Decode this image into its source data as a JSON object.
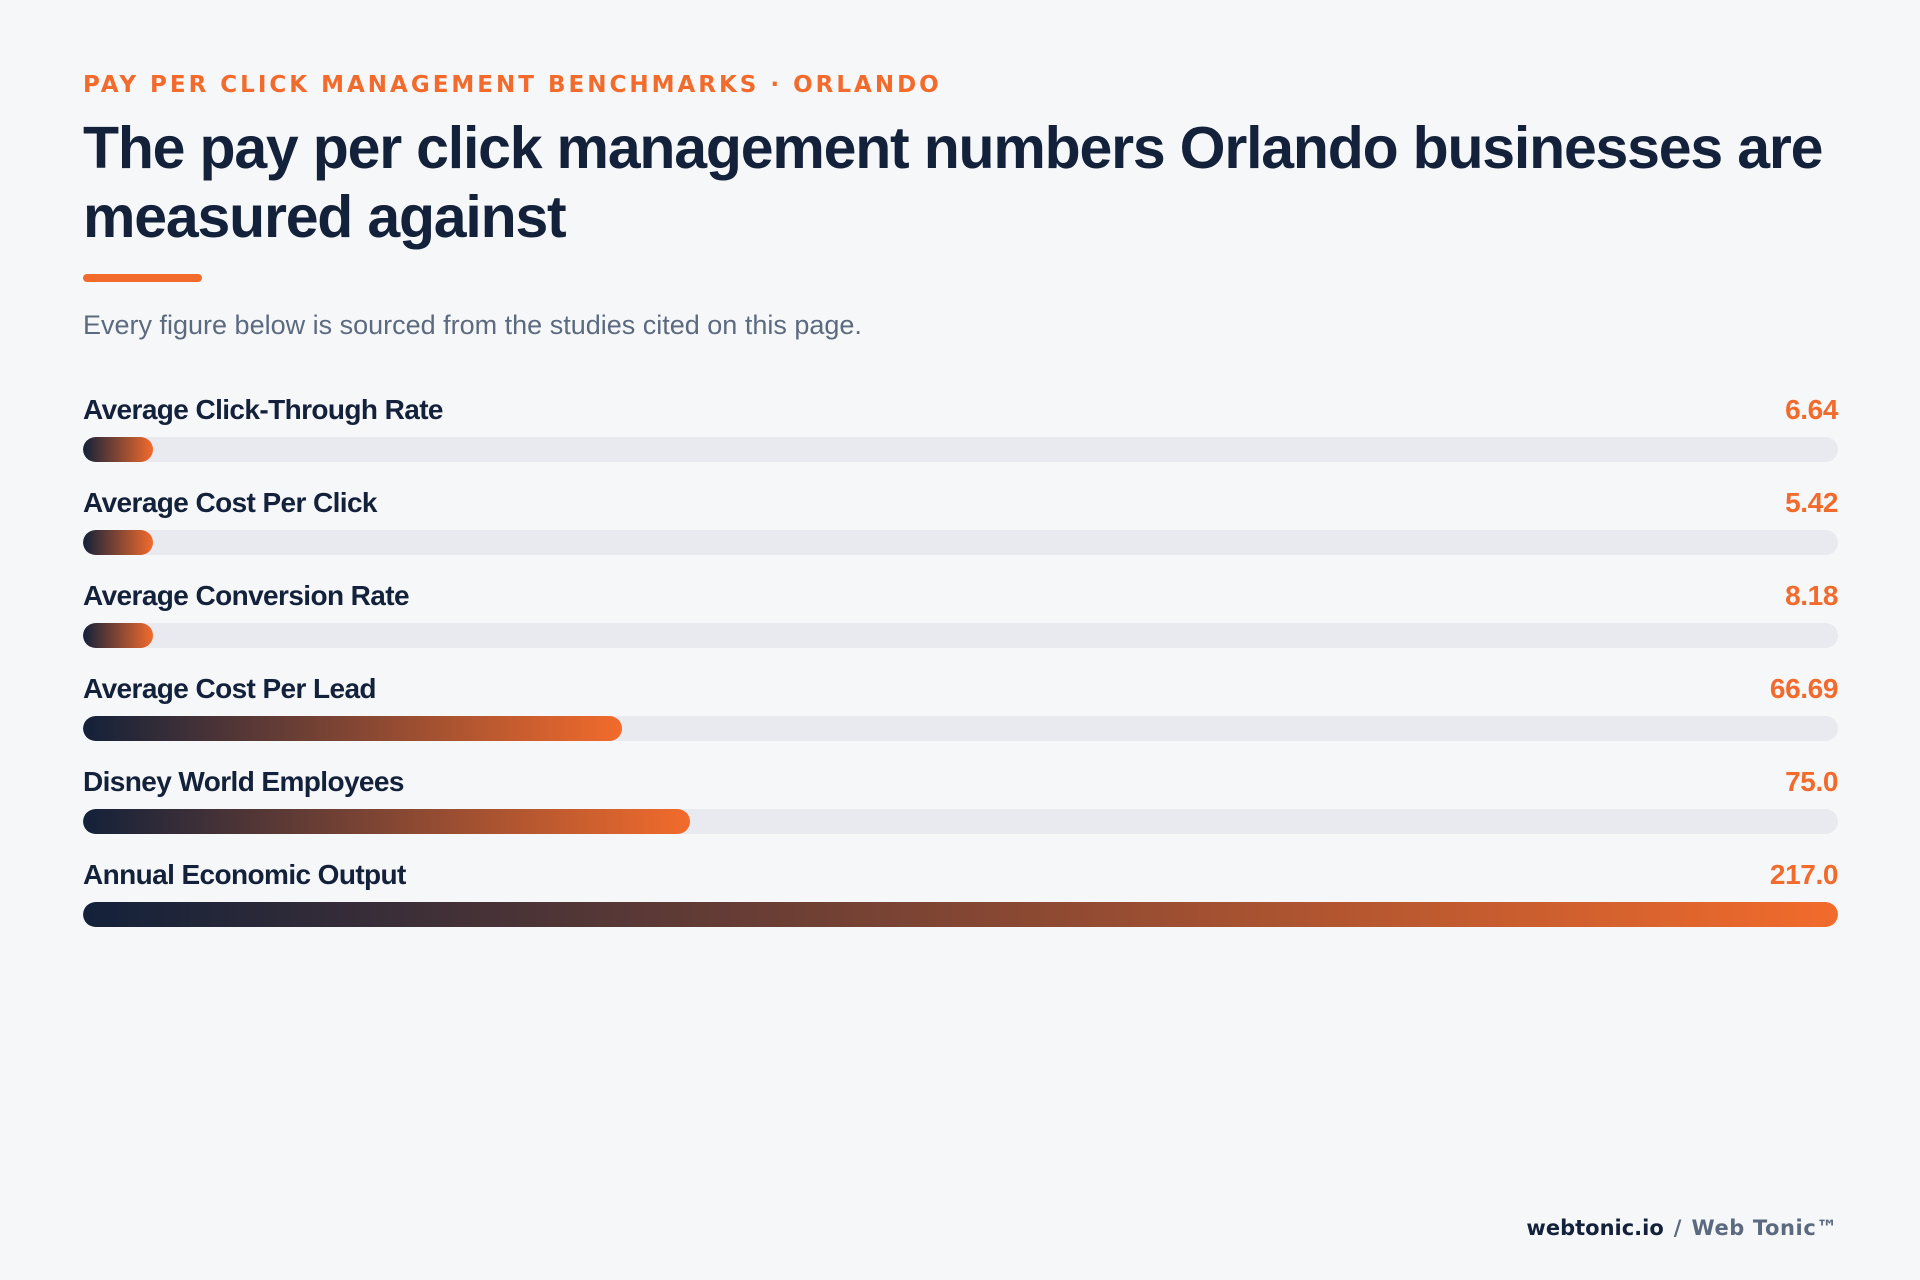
{
  "header": {
    "eyebrow": "PAY PER CLICK MANAGEMENT BENCHMARKS · ORLANDO",
    "title": "The pay per click management numbers Orlando businesses are measured against",
    "subtitle": "Every figure below is sourced from the studies cited on this page."
  },
  "chart_data": {
    "type": "bar",
    "orientation": "horizontal",
    "title": "",
    "categories": [
      "Average Click-Through Rate",
      "Average Cost Per Click",
      "Average Conversion Rate",
      "Average Cost Per Lead",
      "Disney World Employees",
      "Annual Economic Output"
    ],
    "values": [
      6.64,
      5.42,
      8.18,
      66.69,
      75.0,
      217.0
    ],
    "value_labels": [
      "6.64",
      "5.42",
      "8.18",
      "66.69",
      "75.0",
      "217.0"
    ],
    "xlim": [
      0,
      217.0
    ],
    "min_bar_fraction": 0.04,
    "grid": false,
    "legend": "none",
    "colors": {
      "gradient_start": "#13213a",
      "gradient_end": "#f26b2c",
      "track": "#e8eaf0",
      "value_text": "#f26b2c"
    }
  },
  "footer": {
    "domain": "webtonic.io",
    "separator": "/",
    "brand": "Web Tonic™"
  },
  "colors": {
    "background": "#f6f7f9",
    "accent": "#f26b2c",
    "heading": "#13213a",
    "muted": "#5c6a80"
  }
}
